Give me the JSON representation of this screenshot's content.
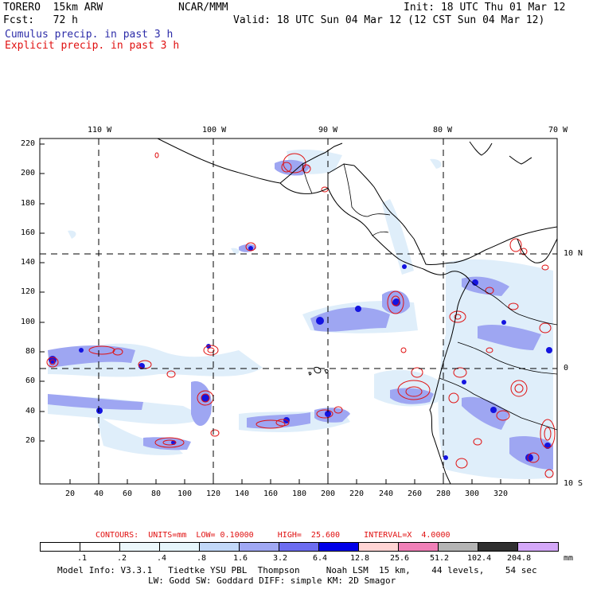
{
  "header": {
    "model_name": "TORERO  15km ARW",
    "org": "NCAR/MMM",
    "init": "Init: 18 UTC Thu 01 Mar 12",
    "fcst": "Fcst:   72 h",
    "valid": "Valid: 18 UTC Sun 04 Mar 12 (12 CST Sun 04 Mar 12)",
    "field1": "Cumulus precip. in past 3 h",
    "field2": "Explicit precip. in past 3 h"
  },
  "axes": {
    "lon_labels": [
      "110 W",
      "100 W",
      "90 W",
      "80 W",
      "70 W"
    ],
    "lat_labels": [
      "10 N",
      "0",
      "10 S"
    ],
    "y_ticks": [
      "220",
      "200",
      "180",
      "160",
      "140",
      "120",
      "100",
      "80",
      "60",
      "40",
      "20"
    ],
    "x_ticks": [
      "20",
      "40",
      "60",
      "80",
      "100",
      "120",
      "140",
      "160",
      "180",
      "200",
      "220",
      "240",
      "260",
      "280",
      "300",
      "320"
    ]
  },
  "legend": {
    "contours": "CONTOURS:  UNITS=mm  LOW= 0.10000     HIGH=  25.600     INTERVAL=X  4.0000",
    "unit": "mm",
    "labels": [
      ".1",
      ".2",
      ".4",
      ".8",
      "1.6",
      "3.2",
      "6.4",
      "12.8",
      "25.6",
      "51.2",
      "102.4",
      "204.8"
    ],
    "colors": [
      "#ffffff",
      "#ffffff",
      "#ecf7fb",
      "#e6f5fb",
      "#c2d8f8",
      "#a0a8f4",
      "#6c6cf0",
      "#0000e8",
      "#ffd4d4",
      "#f080b8",
      "#b4b4b4",
      "#303030",
      "#d4a8f8"
    ]
  },
  "footer": {
    "line1": "Model Info: V3.3.1   Tiedtke YSU PBL  Thompson     Noah LSM  15 km,    44 levels,    54 sec",
    "line2": "LW: Godd SW: Goddard DIFF: simple KM: 2D Smagor"
  }
}
